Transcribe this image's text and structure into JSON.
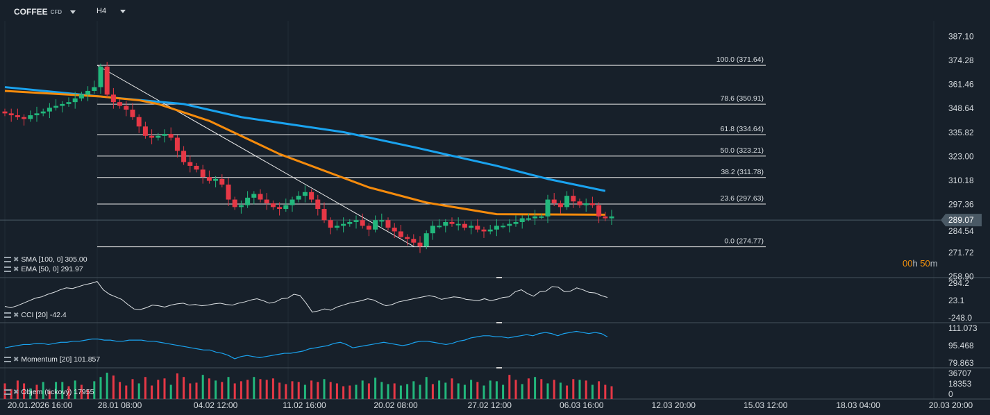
{
  "header": {
    "symbol": "COFFEE",
    "symbol_type": "CFD",
    "timeframe": "H4"
  },
  "colors": {
    "background": "#17202a",
    "up": "#22b77c",
    "down": "#e63846",
    "sma": "#1aa3ef",
    "ema": "#f58b0c",
    "fib": "#e8e8e8",
    "current_price": "#4a5965",
    "timer": "#f0900d"
  },
  "price_axis": {
    "labels": [
      "387.10",
      "374.28",
      "361.46",
      "348.64",
      "335.82",
      "323.00",
      "310.18",
      "297.36",
      "284.54",
      "271.72",
      "258.90"
    ],
    "current_price": "289.07"
  },
  "timer": {
    "hours": "00",
    "h": "h",
    "minutes": "50",
    "m": "m"
  },
  "indicators": {
    "sma": {
      "label": "SMA [100,  0] 305.00",
      "points": [
        [
          0,
          360
        ],
        [
          15,
          355
        ],
        [
          28,
          351
        ],
        [
          37,
          344
        ],
        [
          53,
          336
        ],
        [
          64,
          328
        ],
        [
          77,
          318
        ],
        [
          85,
          311
        ],
        [
          94,
          304.6
        ]
      ]
    },
    "ema": {
      "label": "EMA [50, 0] 291.97",
      "points": [
        [
          0,
          358
        ],
        [
          15,
          355
        ],
        [
          21,
          353
        ],
        [
          24,
          351
        ],
        [
          32,
          342
        ],
        [
          43,
          324.3
        ],
        [
          57,
          306.5
        ],
        [
          66,
          298.4
        ],
        [
          77,
          292.2
        ],
        [
          94,
          291.9
        ]
      ]
    },
    "cci": {
      "label": "CCI [20]  -42.4",
      "axis": [
        "294.2",
        "23.1",
        "-248.0"
      ],
      "range": [
        -300,
        330
      ],
      "values": [
        -110,
        -130,
        -100,
        -60,
        -20,
        20,
        40,
        80,
        110,
        150,
        180,
        170,
        200,
        230,
        250,
        280,
        150,
        80,
        40,
        0,
        -80,
        -150,
        -160,
        -130,
        -90,
        -100,
        -120,
        -90,
        -70,
        -60,
        -90,
        -80,
        -100,
        -90,
        -70,
        -60,
        -80,
        -90,
        -60,
        -40,
        -10,
        10,
        -20,
        -60,
        -40,
        10,
        20,
        80,
        60,
        -60,
        -200,
        -180,
        -150,
        -170,
        -120,
        -90,
        -60,
        -40,
        -20,
        10,
        -10,
        -60,
        -100,
        -80,
        -40,
        -20,
        0,
        20,
        40,
        60,
        40,
        0,
        20,
        40,
        30,
        0,
        -10,
        -20,
        10,
        -20,
        0,
        30,
        40,
        120,
        150,
        90,
        50,
        120,
        130,
        200,
        190,
        120,
        130,
        180,
        150,
        110,
        100,
        60,
        30
      ]
    },
    "momentum": {
      "label": "Momentum  [20]  101.857",
      "axis": [
        "111.073",
        "95.468",
        "79.863"
      ],
      "range": [
        76,
        114
      ],
      "values": [
        93,
        94,
        95,
        96,
        96,
        97,
        97,
        96,
        97,
        98,
        98,
        99,
        99,
        100,
        101,
        101,
        100,
        100,
        99,
        99,
        100,
        100,
        100,
        99,
        99,
        98,
        97,
        96,
        95,
        94,
        93,
        92,
        91,
        91,
        89,
        88,
        86,
        83,
        85,
        86,
        85,
        84,
        85,
        86,
        87,
        88,
        88,
        89,
        90,
        92,
        93,
        94,
        95,
        97,
        98,
        96,
        93,
        94,
        95,
        96,
        97,
        98,
        97,
        96,
        95,
        96,
        98,
        99,
        99,
        98,
        97,
        96,
        97,
        99,
        100,
        102,
        103,
        104,
        104,
        103,
        103,
        102,
        103,
        104,
        105,
        104,
        106,
        107,
        106,
        104,
        106,
        107,
        108,
        107,
        106,
        107,
        106,
        103
      ]
    },
    "volume": {
      "label": "Objem (tickový)  17955",
      "axis": [
        "36707",
        "18353",
        "0"
      ],
      "max": 40000,
      "values": [
        22000,
        14000,
        26000,
        22000,
        15000,
        20000,
        24000,
        11000,
        24000,
        24000,
        18000,
        26000,
        20000,
        13000,
        25000,
        31000,
        37000,
        33000,
        24000,
        19000,
        28000,
        22000,
        31000,
        19000,
        27000,
        29000,
        20000,
        36000,
        31000,
        22000,
        23000,
        34000,
        29000,
        26000,
        24000,
        31000,
        22000,
        25000,
        27000,
        31000,
        28000,
        27000,
        29000,
        23000,
        21000,
        25000,
        24000,
        20000,
        26000,
        24000,
        28000,
        24000,
        22000,
        18000,
        19000,
        20000,
        26000,
        22000,
        30000,
        24000,
        21000,
        22000,
        19000,
        21000,
        25000,
        20000,
        31000,
        21000,
        26000,
        23000,
        29000,
        22000,
        20000,
        27000,
        24000,
        19000,
        26000,
        25000,
        20000,
        34000,
        27000,
        21000,
        29000,
        31000,
        28000,
        22000,
        27000,
        23000,
        19000,
        28000,
        27000,
        26000,
        20000,
        25000,
        20000,
        18000
      ],
      "colors": "rrrrgrgrggrgrrgggrrrrgrrrrgrrrrgrgrgrrrgrrrrrrrgrrgrrrrggrgggrgggggrggrgggrggggrrgrgrgrgrrgrgrrrg"
    }
  },
  "candles": {
    "closes": [
      346,
      345,
      344,
      343,
      345,
      346,
      347,
      349,
      350,
      351,
      352,
      354,
      356,
      358,
      360,
      371,
      356,
      352,
      350,
      348,
      344,
      339,
      334,
      333,
      334,
      335,
      333,
      326,
      320,
      318,
      316,
      312,
      310,
      311,
      308,
      300,
      296,
      297,
      301,
      303,
      300,
      298,
      296,
      295,
      297,
      300,
      302,
      304,
      300,
      295,
      289,
      285,
      286,
      287,
      288,
      289,
      286,
      284,
      289,
      289,
      285,
      283,
      280,
      279,
      277,
      275,
      282,
      286,
      286,
      288,
      287,
      287,
      285,
      286,
      284,
      283,
      284,
      286,
      286,
      287,
      288,
      290,
      290,
      291,
      291,
      300,
      298,
      296,
      302,
      299,
      297,
      298,
      297,
      291,
      290,
      291
    ]
  },
  "fibonacci": {
    "levels": [
      {
        "label": "100.0 (371.64)",
        "price": 371.64
      },
      {
        "label": "78.6 (350.91)",
        "price": 350.91
      },
      {
        "label": "61.8 (334.64)",
        "price": 334.64
      },
      {
        "label": "50.0 (323.21)",
        "price": 323.21
      },
      {
        "label": "38.2 (311.78)",
        "price": 311.78
      },
      {
        "label": "23.6 (297.63)",
        "price": 297.63
      },
      {
        "label": "0.0 (274.77)",
        "price": 274.77
      }
    ]
  },
  "time_axis": {
    "labels": [
      {
        "text": "20.01.2026  16:00",
        "i": 5.5
      },
      {
        "text": "28.01  08:00",
        "i": 18
      },
      {
        "text": "04.02  12:00",
        "i": 33
      },
      {
        "text": "11.02  16:00",
        "i": 46.9
      },
      {
        "text": "20.02  08:00",
        "i": 61.2
      },
      {
        "text": "27.02  12:00",
        "i": 75.9
      },
      {
        "text": "06.03  16:00",
        "i": 90.3
      },
      {
        "text": "12.03  20:00",
        "i": 104.7
      },
      {
        "text": "15.03  12:00",
        "i": 119.1
      },
      {
        "text": "18.03  04:00",
        "i": 133.6
      },
      {
        "text": "20.03  20:00",
        "i": 148.1
      }
    ]
  }
}
